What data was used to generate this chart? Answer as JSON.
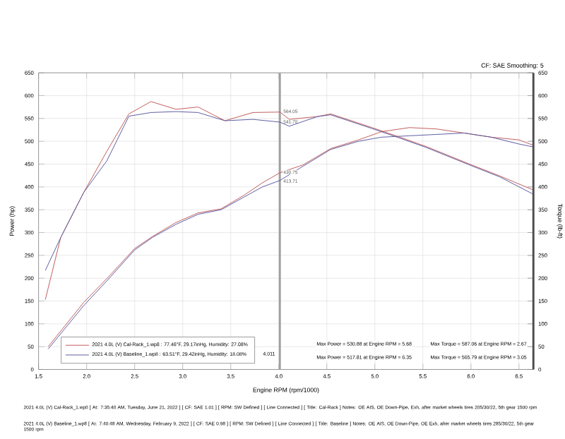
{
  "chart_data": {
    "type": "line",
    "subtitle": "CF: SAE Smoothing: 5",
    "xlabel": "Engine RPM (rpm/1000)",
    "ylabel": "Power (hp)",
    "y2label": "Torque (lb-ft)",
    "xlim": [
      1.5,
      6.65
    ],
    "xticks": [
      1.5,
      {
        "value": 2,
        "label": "2.0"
      },
      2.5,
      {
        "value": 3,
        "label": "3.0"
      },
      3.5,
      {
        "value": 4,
        "label": "4.0"
      },
      4.5,
      {
        "value": 5,
        "label": "5.0"
      },
      5.5,
      {
        "value": 6,
        "label": "6.0"
      },
      6.5
    ],
    "ylim": [
      0,
      650
    ],
    "yticks": [
      0,
      50,
      100,
      150,
      200,
      250,
      300,
      350,
      400,
      450,
      500,
      550,
      600,
      650
    ],
    "y2lim": [
      0,
      650
    ],
    "y2ticks": [
      0,
      50,
      100,
      150,
      200,
      250,
      300,
      350,
      400,
      450,
      500,
      550,
      600,
      650
    ],
    "grid": true,
    "legend": "bottom left",
    "series": [
      {
        "name": "2021 4.0L (V) Cal-Rack_1.wp8 : 77.46°F, 29.17inHg, Humidity: 27.08%",
        "color": "#c05a5a",
        "x": [
          1.6,
          1.97,
          2.21,
          2.5,
          2.69,
          2.93,
          3.16,
          3.4,
          3.64,
          3.83,
          4.011,
          4.25,
          4.54,
          4.83,
          5.07,
          5.36,
          5.64,
          5.93,
          6.21,
          6.5,
          6.64
        ],
        "values": [
          50,
          147,
          199,
          265,
          292,
          322,
          343,
          352,
          382,
          409,
          431,
          448,
          484,
          503,
          521,
          530,
          527,
          518,
          509,
          503,
          492
        ]
      },
      {
        "name": "2021 4.0L (V) Baseline_1.wp8 : 63.51°F, 29.42inHg, Humidity: 18.08%",
        "color": "#5a5aa0",
        "x": [
          1.6,
          1.97,
          2.21,
          2.5,
          2.69,
          2.93,
          3.16,
          3.4,
          3.64,
          3.83,
          4.011,
          4.25,
          4.54,
          4.83,
          5.07,
          5.36,
          5.64,
          5.93,
          6.21,
          6.5,
          6.64
        ],
        "values": [
          45,
          140,
          194,
          262,
          290,
          318,
          340,
          350,
          378,
          400,
          414,
          445,
          482,
          500,
          509,
          512,
          515,
          518,
          509,
          494,
          488
        ]
      },
      {
        "color": "#c05a5a",
        "axis": "y2",
        "x": [
          1.57,
          1.73,
          1.97,
          2.21,
          2.44,
          2.67,
          2.93,
          3.16,
          3.44,
          3.73,
          4.011,
          4.11,
          4.4,
          4.54,
          4.97,
          5.26,
          5.54,
          6.01,
          6.3,
          6.64
        ],
        "values": [
          153,
          289,
          388,
          478,
          560,
          587,
          570,
          575,
          545,
          563,
          564,
          548,
          554,
          560,
          530,
          509,
          488,
          448,
          424,
          394
        ]
      },
      {
        "color": "#5a5aa0",
        "axis": "y2",
        "x": [
          1.57,
          1.73,
          1.97,
          2.21,
          2.44,
          2.67,
          2.93,
          3.16,
          3.44,
          3.73,
          4.011,
          4.11,
          4.4,
          4.54,
          4.97,
          5.26,
          5.54,
          6.01,
          6.3,
          6.64
        ],
        "values": [
          217,
          289,
          388,
          457,
          555,
          563,
          565,
          563,
          545,
          548,
          542,
          533,
          554,
          558,
          528,
          507,
          486,
          446,
          422,
          385
        ]
      }
    ],
    "ref_lines": [
      {
        "axis": "x",
        "value": 4.011,
        "label": "4.011",
        "color": "#a0a0a0"
      }
    ],
    "annotations": [
      "564.05",
      "541.78",
      "430.75",
      "413.71",
      "Max Power = 530.88 at Engine RPM = 5.68",
      "Max Torque = 587.06 at Engine RPM = 2.67",
      "Max Power = 517.81 at Engine RPM = 6.35",
      "Max Torque = 565.79 at Engine RPM = 3.05",
      "2021 4.0L (V) Cal-Rack_1.wp8 [ At: 7:35:48 AM, Tuesday, June 21, 2022 ] [ CF: SAE 1.01 ] [ RPM: SW Defined ] [ Line Connected ] [ Title: Cal-Rack ] Notes: OE AIS, OE Down-Pipe, Exh, after market wheels tires 285/30/22, 5th gear 1500 rpm",
      "2021 4.0L (V) Baseline_1.wp8 [ At: 7:40:48 AM, Wednesday, February 9, 2022 ] [ CF: SAE 0.98 ] [ RPM: SW Defined ] [ Line Connected ] [ Title: Baseline ] Notes: OE AIS, OE Down-Pipe, OE Exh, after market wheels tires 285/30/22, 5th gear 1500 rpm"
    ]
  }
}
